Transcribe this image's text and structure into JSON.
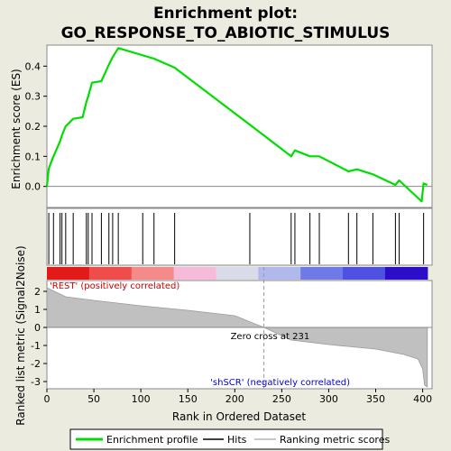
{
  "chart_data": {
    "type": "line",
    "title_line1": "Enrichment plot:",
    "title_line2": "GO_RESPONSE_TO_ABIOTIC_STIMULUS",
    "xlabel": "Rank in Ordered Dataset",
    "ylabel_top": "Enrichment score (ES)",
    "ylabel_bottom": "Ranked list metric (Signal2Noise)",
    "xlim": [
      0,
      410
    ],
    "ylim_top": [
      -0.07,
      0.47
    ],
    "ylim_bottom": [
      -3.4,
      2.6
    ],
    "xticks": [
      0,
      50,
      100,
      150,
      200,
      250,
      300,
      350,
      400
    ],
    "yticks_top": [
      0.0,
      0.1,
      0.2,
      0.3,
      0.4
    ],
    "yticks_top_labels": [
      "0.0",
      "0.1",
      "0.2",
      "0.3",
      "0.4"
    ],
    "yticks_bottom": [
      2,
      1,
      0,
      -1,
      -2,
      -3
    ],
    "grid": false,
    "series": [
      {
        "name": "Enrichment profile",
        "color": "#00dd00",
        "x": [
          0,
          2,
          7,
          14,
          16,
          20,
          28,
          38,
          42,
          44,
          48,
          58,
          66,
          70,
          76,
          114,
          136,
          216,
          260,
          264,
          280,
          290,
          321,
          330,
          347,
          371,
          375,
          399,
          401,
          405
        ],
        "y": [
          0.0,
          0.06,
          0.1,
          0.15,
          0.17,
          0.2,
          0.225,
          0.23,
          0.28,
          0.3,
          0.345,
          0.35,
          0.405,
          0.43,
          0.46,
          0.425,
          0.395,
          0.205,
          0.1,
          0.12,
          0.1,
          0.1,
          0.05,
          0.057,
          0.04,
          0.005,
          0.02,
          -0.05,
          0.01,
          0.005
        ]
      }
    ],
    "hits": [
      2,
      7,
      14,
      16,
      20,
      28,
      42,
      44,
      48,
      58,
      66,
      70,
      76,
      102,
      114,
      136,
      216,
      260,
      264,
      280,
      290,
      321,
      330,
      347,
      371,
      375,
      401
    ],
    "metric": {
      "x": [
        0,
        20,
        50,
        100,
        150,
        200,
        231,
        260,
        300,
        350,
        380,
        395,
        400,
        402,
        405
      ],
      "y": [
        2.2,
        1.7,
        1.5,
        1.2,
        0.95,
        0.65,
        0.0,
        -0.7,
        -0.95,
        -1.2,
        -1.5,
        -1.75,
        -2.3,
        -3.2,
        -3.3
      ]
    },
    "zero_cross": 231,
    "zero_cross_label": "Zero cross at 231",
    "pos_label": "'REST' (positively correlated)",
    "neg_label": "'shSCR' (negatively correlated)",
    "heat_colors": [
      "#e21a1a",
      "#ef4c4c",
      "#f48a8a",
      "#f6bbd8",
      "#dadbe8",
      "#b1b8ee",
      "#6f79e8",
      "#4f51e2",
      "#2b0fc8"
    ],
    "legend": [
      "Enrichment profile",
      "Hits",
      "Ranking metric scores"
    ]
  }
}
